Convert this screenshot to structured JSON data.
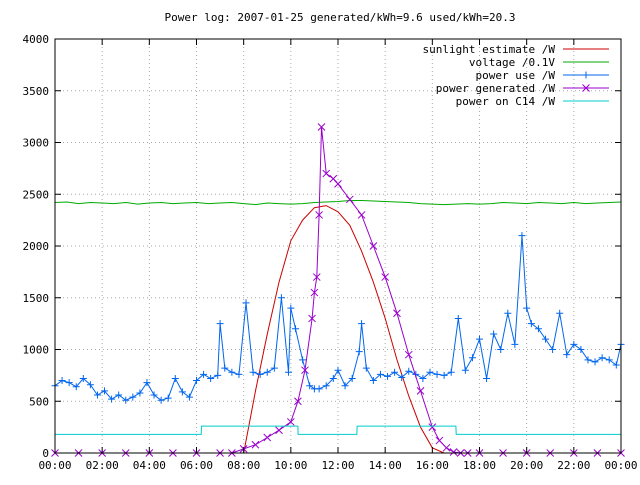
{
  "chart_data": {
    "type": "line",
    "title": "Power log: 2007-01-25 generated/kWh=9.6 used/kWh=20.3",
    "xlabel": "",
    "ylabel": "",
    "ylim": [
      0,
      4000
    ],
    "xlim": [
      0,
      24
    ],
    "grid": true,
    "legend_placement": "top-right",
    "x_ticks": [
      {
        "value": 0,
        "label": "00:00"
      },
      {
        "value": 2,
        "label": "02:00"
      },
      {
        "value": 4,
        "label": "04:00"
      },
      {
        "value": 6,
        "label": "06:00"
      },
      {
        "value": 8,
        "label": "08:00"
      },
      {
        "value": 10,
        "label": "10:00"
      },
      {
        "value": 12,
        "label": "12:00"
      },
      {
        "value": 14,
        "label": "14:00"
      },
      {
        "value": 16,
        "label": "16:00"
      },
      {
        "value": 18,
        "label": "18:00"
      },
      {
        "value": 20,
        "label": "20:00"
      },
      {
        "value": 22,
        "label": "22:00"
      },
      {
        "value": 24,
        "label": "00:00"
      }
    ],
    "y_ticks": [
      {
        "value": 0,
        "label": "0"
      },
      {
        "value": 500,
        "label": "500"
      },
      {
        "value": 1000,
        "label": "1000"
      },
      {
        "value": 1500,
        "label": "1500"
      },
      {
        "value": 2000,
        "label": "2000"
      },
      {
        "value": 2500,
        "label": "2500"
      },
      {
        "value": 3000,
        "label": "3000"
      },
      {
        "value": 3500,
        "label": "3500"
      },
      {
        "value": 4000,
        "label": "4000"
      }
    ],
    "series": [
      {
        "name": "sunlight estimate /W",
        "color": "#cc0000",
        "marker": "none",
        "x": [
          7.0,
          7.5,
          8.0,
          8.5,
          9.0,
          9.5,
          10.0,
          10.5,
          11.0,
          11.5,
          12.0,
          12.5,
          13.0,
          13.5,
          14.0,
          14.5,
          15.0,
          15.5,
          16.0,
          16.5,
          17.0
        ],
        "values": [
          0,
          0,
          0,
          600,
          1150,
          1650,
          2050,
          2250,
          2370,
          2390,
          2330,
          2200,
          1950,
          1650,
          1300,
          900,
          550,
          250,
          50,
          0,
          0
        ]
      },
      {
        "name": "voltage /0.1V",
        "color": "#00aa00",
        "marker": "none",
        "x": [
          0,
          0.5,
          1,
          1.5,
          2,
          2.5,
          3,
          3.5,
          4,
          4.5,
          5,
          5.5,
          6,
          6.5,
          7,
          7.5,
          8,
          8.5,
          9,
          9.5,
          10,
          10.5,
          11,
          11.5,
          12,
          12.5,
          13,
          13.5,
          14,
          14.5,
          15,
          15.5,
          16,
          16.5,
          17,
          17.5,
          18,
          18.5,
          19,
          19.5,
          20,
          20.5,
          21,
          21.5,
          22,
          22.5,
          23,
          23.5,
          24
        ],
        "values": [
          2420,
          2425,
          2410,
          2420,
          2415,
          2410,
          2420,
          2405,
          2415,
          2420,
          2410,
          2415,
          2420,
          2410,
          2415,
          2420,
          2410,
          2400,
          2415,
          2410,
          2405,
          2410,
          2420,
          2425,
          2430,
          2440,
          2440,
          2435,
          2430,
          2425,
          2420,
          2410,
          2405,
          2400,
          2405,
          2410,
          2405,
          2410,
          2420,
          2415,
          2410,
          2420,
          2415,
          2410,
          2420,
          2410,
          2415,
          2420,
          2425
        ]
      },
      {
        "name": "power use /W",
        "color": "#0066ee",
        "marker": "plus",
        "x": [
          0,
          0.3,
          0.6,
          0.9,
          1.2,
          1.5,
          1.8,
          2.1,
          2.4,
          2.7,
          3.0,
          3.3,
          3.6,
          3.9,
          4.2,
          4.5,
          4.8,
          5.1,
          5.4,
          5.7,
          6.0,
          6.3,
          6.6,
          6.9,
          7.0,
          7.2,
          7.5,
          7.8,
          8.1,
          8.4,
          8.7,
          9.0,
          9.3,
          9.6,
          9.9,
          10.0,
          10.2,
          10.5,
          10.8,
          11.0,
          11.2,
          11.5,
          11.8,
          12.0,
          12.3,
          12.6,
          12.9,
          13.0,
          13.2,
          13.5,
          13.8,
          14.1,
          14.4,
          14.7,
          15.0,
          15.3,
          15.6,
          15.9,
          16.2,
          16.5,
          16.8,
          17.1,
          17.4,
          17.7,
          18.0,
          18.3,
          18.6,
          18.9,
          19.2,
          19.5,
          19.8,
          20.0,
          20.2,
          20.5,
          20.8,
          21.1,
          21.4,
          21.7,
          22.0,
          22.3,
          22.6,
          22.9,
          23.2,
          23.5,
          23.8,
          24.0
        ],
        "values": [
          650,
          700,
          680,
          640,
          720,
          660,
          560,
          600,
          520,
          560,
          510,
          540,
          580,
          680,
          560,
          510,
          530,
          720,
          590,
          540,
          700,
          760,
          720,
          750,
          1250,
          820,
          780,
          760,
          1450,
          780,
          760,
          780,
          820,
          1500,
          780,
          1400,
          1200,
          900,
          650,
          620,
          620,
          650,
          720,
          800,
          650,
          720,
          980,
          1250,
          820,
          700,
          760,
          740,
          780,
          730,
          790,
          760,
          720,
          780,
          760,
          750,
          780,
          1300,
          800,
          920,
          1100,
          720,
          1150,
          1000,
          1350,
          1050,
          2100,
          1400,
          1250,
          1200,
          1100,
          1000,
          1350,
          950,
          1050,
          1000,
          900,
          880,
          920,
          900,
          850,
          1050
        ]
      },
      {
        "name": "power generated /W",
        "color": "#9900cc",
        "marker": "x",
        "x": [
          0,
          1,
          2,
          3,
          4,
          5,
          6,
          7,
          7.5,
          8.0,
          8.5,
          9.0,
          9.5,
          10.0,
          10.3,
          10.6,
          10.9,
          11.0,
          11.1,
          11.2,
          11.3,
          11.5,
          11.8,
          12.0,
          12.5,
          13.0,
          13.5,
          14.0,
          14.5,
          15.0,
          15.5,
          16.0,
          16.3,
          16.6,
          16.9,
          17.2,
          17.5,
          18.0,
          19.0,
          20.0,
          21.0,
          22.0,
          23.0,
          24.0
        ],
        "values": [
          0,
          0,
          0,
          0,
          0,
          0,
          0,
          0,
          0,
          40,
          80,
          150,
          220,
          300,
          500,
          800,
          1300,
          1550,
          1700,
          2300,
          3150,
          2700,
          2650,
          2600,
          2450,
          2300,
          2000,
          1700,
          1350,
          950,
          600,
          250,
          120,
          50,
          10,
          0,
          0,
          0,
          0,
          0,
          0,
          0,
          0,
          0
        ]
      },
      {
        "name": "power on C14 /W",
        "color": "#00cccc",
        "marker": "none",
        "x": [
          0,
          6.2,
          6.21,
          10.3,
          10.31,
          12.8,
          12.81,
          17.0,
          17.01,
          24.0
        ],
        "values": [
          180,
          180,
          260,
          260,
          180,
          180,
          260,
          260,
          180,
          180
        ]
      }
    ]
  }
}
